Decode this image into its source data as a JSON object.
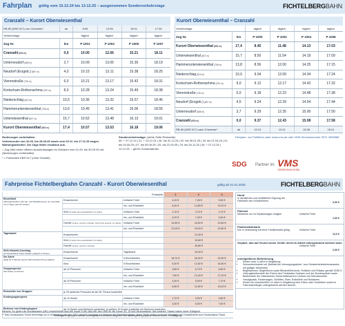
{
  "header": {
    "title": "Fahrplan",
    "validity": "gültig vom 15.12.24 bis 13.12.25 – ausgenommen Sonderverkehrstage",
    "logo_bold": "FICHTELBERG",
    "logo_light": "BAHN"
  },
  "timetables": [
    {
      "title": "Cranzahl – Kurort Oberwiesenthal",
      "arrival": {
        "label": "RB 80 (KBS 517) von Chemnitz*",
        "mark": "an",
        "times": [
          "8:55",
          "12:55",
          "15:01",
          "17:05"
        ]
      },
      "days_label": "Verkehrstage",
      "days": [
        "täglich",
        "täglich",
        "täglich",
        "täglich"
      ],
      "train_label": "Zug Nr.",
      "km_label": "km",
      "trains": [
        "P 1001",
        "P 1003",
        "P 1005",
        "P 1007"
      ],
      "stops": [
        {
          "name": "Cranzahl",
          "alt": "(654 m)",
          "km": "0,0",
          "times": [
            "10.00",
            "12.56",
            "15.21",
            "18.11"
          ]
        },
        {
          "name": "Unterneudorf",
          "alt": "(685 m)",
          "km": "2,7",
          "times": [
            "10.09",
            "13.05",
            "15.30",
            "18.19"
          ]
        },
        {
          "name": "Neudorf (Erzgeb.)",
          "alt": "(687 m)",
          "km": "4,0",
          "times": [
            "10.15",
            "13.11",
            "15.38",
            "18.25"
          ]
        },
        {
          "name": "Vierenstraße",
          "alt": "(726 m)",
          "km": "6,0",
          "times": [
            "10.21",
            "13.17",
            "15.42",
            "18.31"
          ]
        },
        {
          "name": "Kretscham-Rothensehma",
          "alt": "(792 m)",
          "km": "8,0",
          "times": [
            "10.28",
            "13.24",
            "15.49",
            "18.38"
          ]
        },
        {
          "name": "Niederschlag",
          "alt": "(813 m)",
          "km": "10,5",
          "times": [
            "10.36",
            "13.32",
            "15.57",
            "18.46"
          ]
        },
        {
          "name": "Hammerunterwiesenthal",
          "alt": "(796 m)",
          "km": "13,6",
          "times": [
            "10.45",
            "13.41",
            "16.06",
            "18.55"
          ]
        },
        {
          "name": "Unterwiesenthal",
          "alt": "(847 m)",
          "km": "15,7",
          "times": [
            "10.52",
            "13.48",
            "16.13",
            "19.01"
          ]
        },
        {
          "name": "Kurort Oberwiesenthal",
          "alt": "(893 m)",
          "km": "17,4",
          "times": [
            "10.57",
            "13.53",
            "16.18",
            "19.06"
          ]
        }
      ]
    },
    {
      "title": "Kurort Oberwiesenthal – Cranzahl",
      "days_label": "Verkehrstage",
      "days": [
        "täglich",
        "täglich",
        "täglich",
        "täglich"
      ],
      "train_label": "Zug Nr.",
      "km_label": "km",
      "trains": [
        "P 1000",
        "P 1002",
        "P 1004",
        "P 1006"
      ],
      "stops": [
        {
          "name": "Kurort Oberwiesenthal",
          "alt": "(893 m)",
          "km": "17,4",
          "times": [
            "8.45",
            "11.48",
            "14.13",
            "17.03"
          ]
        },
        {
          "name": "Unterwiesenthal",
          "alt": "(847 m)",
          "km": "15,7",
          "times": [
            "8.50",
            "11.54",
            "14.19",
            "17.09"
          ]
        },
        {
          "name": "Hammerunterwiesenthal",
          "alt": "(796 m)",
          "km": "13,8",
          "times": [
            "8.56",
            "12.00",
            "14.25",
            "17.15"
          ]
        },
        {
          "name": "Niederschlag",
          "alt": "(813 m)",
          "km": "10,9",
          "times": [
            "9.04",
            "12.09",
            "14.34",
            "17.24"
          ]
        },
        {
          "name": "Kretscham-Rothensehma",
          "alt": "(792 m)",
          "km": "9,0",
          "times": [
            "9.12",
            "12.17",
            "14.42",
            "17.32"
          ]
        },
        {
          "name": "Vierenstraße",
          "alt": "(726 m)",
          "km": "6,0",
          "times": [
            "9.18",
            "12.23",
            "14.48",
            "17.38"
          ]
        },
        {
          "name": "Neudorf (Erzgeb.)",
          "alt": "(687 m)",
          "km": "4,5",
          "times": [
            "9.24",
            "12.29",
            "14.54",
            "17.44"
          ]
        },
        {
          "name": "Unterneudorf",
          "alt": "(685 m)",
          "km": "3,7",
          "times": [
            "9.29",
            "12.35",
            "15.00",
            "17.50"
          ]
        },
        {
          "name": "Cranzahl",
          "alt": "(654 m)",
          "km": "0,0",
          "times": [
            "9.37",
            "12.43",
            "15.08",
            "17.58"
          ]
        }
      ],
      "departure": {
        "label": "RB 80 (KBS 517) nach Chemnitz*",
        "mark": "ab",
        "times": [
          "10.01",
          "13.01",
          "15.38",
          "18.01"
        ]
      }
    }
  ],
  "notes": {
    "changes": "Änderungen vorbehalten.",
    "closure": "Verkehrsruhe von 10.03. bis 28.03.25 sowie vom 03.11. bis 27.11.25 wegen Wartungsarbeiten. Die Züge fallen ersatzlos aus.",
    "open_car": "= Zug führt einen offenen Aussichtswagen im Zeitraum vom 01.05. bis 30.09.25 mit. (Änderungen vorbehalten)",
    "kbs": "* = Fahrzeiten KBS 517 (ohne Gewähr)"
  },
  "special": {
    "label": "Sonderverkehrstage:",
    "ref": "(siehe Seite Rückseite)",
    "dates": [
      "06. + 07.12.24",
      "21. + 22.12.24",
      "26. bis 31.12.24",
      "02. bis 05.01.25",
      "18. bis 21.04.25",
      "01. bis 04.05.25",
      "07. bis 09.06.25",
      "20. bis 21.09.25",
      "29. bis 30.11.25",
      "06. + 07.12.25",
      "12.12.25"
    ],
    "suffix": "– gilt für Sonderfahrten"
  },
  "info": "Fahrplan- und Tarifinfos unter www.vms.de oder VMS-Servicenummer 0371 4000888",
  "partner": {
    "sdg": "SDG",
    "text": "Partner im",
    "vms": "VMS",
    "vms_sub": "GEMEINSAM MOBIL"
  },
  "fares": {
    "title": "Fahrpreise Fichtelbergbahn Cranzahl - Kurort Oberwiesenthal",
    "validity": "gültig ab 01.01.2025",
    "level_label": "Preisstufe",
    "levels": [
      "1",
      "2",
      "3"
    ],
    "groups": [
      {
        "name": "Einzelfahrt",
        "note": "Fahrradmitnahme: Die Hin- und Rückfahrt kann nur innerhalb von 3 Tagen genutzt werden.",
        "rows": [
          {
            "who": "Erwachsener",
            "kind": "einfache Fahrt",
            "prices": [
              "4,20 €",
              "7,40 €",
              "9,60 €"
            ]
          },
          {
            "kind": "hin- und Rückfahrt",
            "prices": [
              "8,40 €",
              "14,80 €",
              "19,20 €"
            ]
          },
          {
            "who": "Kind",
            "who_note": "(6 Jahre bis einschließlich 14 Jahre)",
            "kind": "einfache Fahrt",
            "prices": [
              "2,10 €",
              "3,70 €",
              "4,70 €"
            ]
          },
          {
            "kind": "hin- und Rückfahrt",
            "prices": [
              "4,20 €",
              "7,40 €",
              "9,40 €"
            ]
          },
          {
            "who": "Familie",
            "who_note": "(2 Erw. und bis 4 Kinder, Kind 6 bis einschl. 14 Jahre)",
            "kind": "einfache Fahrt",
            "prices": [
              "10,50 €",
              "18,50 €",
              "23,60 €"
            ]
          },
          {
            "kind": "hin- und Rückfahrt",
            "prices": [
              "21,00 €",
              "33,00 €",
              "42,80 €"
            ]
          }
        ]
      },
      {
        "name": "Tageskarte",
        "rows": [
          {
            "who": "Erwachsener",
            "prices": [
              "21,40 €"
            ]
          },
          {
            "who": "Kind",
            "who_note": "(6 Jahre bis einschließlich 14 Jahre)",
            "prices": [
              "10,60 €"
            ]
          },
          {
            "who": "Familie",
            "who_note": "(2 Erw. und bis 4 Kinder)",
            "prices": [
              "49,80 €"
            ]
          }
        ]
      },
      {
        "name": "SDG-Historik-Zuschlag",
        "note": "für Deutschland-Ticket Inhaber, gültig für 1 Person",
        "rows": [
          {
            "who": "Erwachsener",
            "kind": "Tageskarte",
            "prices": [
              "10,00 €"
            ]
          }
        ]
      },
      {
        "name": "5er-Karte",
        "note": "gültig für 5 Fahrten (keine Fahrtunterbrechung möglich)",
        "rows": [
          {
            "who": "Erwachsener",
            "kind": "5 Einzelfahrten",
            "prices": [
              "18,70 €",
              "25,00 €",
              "33,90 €"
            ]
          },
          {
            "who": "Kind",
            "kind": "5 Einzelfahrten",
            "prices": [
              "9,30 €",
              "12,60 €",
              "16,90 €"
            ]
          }
        ]
      },
      {
        "name": "Gruppenpreise",
        "note": "Alle Preise pro Person",
        "rows": [
          {
            "who": "ab 10 Personen",
            "kind": "einfache Fahrt",
            "prices": [
              "3,80 €",
              "6,70 €",
              "8,60 €"
            ]
          },
          {
            "kind": "hin- und Rückfahrt",
            "prices": [
              "7,60 €",
              "13,40 €",
              "17,20 €"
            ]
          },
          {
            "who": "ab 25 Personen",
            "kind": "einfache Fahrt",
            "prices": [
              "3,40 €",
              "5,90 €",
              "7,70 €"
            ]
          },
          {
            "kind": "hin- und Rückfahrt",
            "prices": [
              "6,80 €",
              "11,80 €",
              "15,20 €"
            ]
          }
        ]
      },
      {
        "name": "Reiseleiter von Gruppen",
        "text": "je 25 zahlende Personen ist die 26. Person kostenfrei"
      },
      {
        "name": "Kindergruppenpreis",
        "rows": [
          {
            "who": "ab 10 Kinder",
            "kind": "einfache Fahrt",
            "prices": [
              "1,70 €",
              "3,00 €",
              "3,80 €"
            ]
          },
          {
            "kind": "hin- und Rückfahrt",
            "prices": [
              "3,40 €",
              "6,00 €",
              "7,60 €"
            ]
          }
        ]
      },
      {
        "name": "Betreuer von Kindergruppen",
        "text": "ab 10 Kinder zwei Betreuer kostenfrei, je weitere 10 Kinder zusätzlich ein Betreuer kostenfrei"
      }
    ],
    "footnote": "Kindergartengruppen werden unentgeltlich befördert, Begleiter von Kindergartengruppen erhalten keine Ermäßigung.",
    "side": [
      {
        "title": "Hund",
        "text": "in dienstlicher und zertifizierter Eignung der Fahrkarte des Hundeführers",
        "price": "3,00 €"
      },
      {
        "title": "Fahrrad",
        "text": "Mitnahme nur im Gepäckwagen möglich",
        "kind": "einfache Fahrt",
        "price": "1,60 €"
      },
      {
        "title": "Familienfahrkarte",
        "text": "Nur in Verbindung mit einer Familienkarte gültig",
        "kind": "einfache Fahrt",
        "price": "12,0 €"
      },
      {
        "title": "Gepäck, das auf Grund seiner Größe nicht im Abteil untergebracht werden kann",
        "kind": "einfache Fahrt",
        "price": "2,00 €"
      }
    ],
    "free": {
      "title": "unentgeltliche Beförderung",
      "items": [
        "Kinder unter 6 Jahre in Begleitung",
        "Schwerbehinderte mit „Beiblatt der Versorgungsämter“ zum Schwerbehindertenausweis mit gültiger Wertmarke",
        "Begleitperson, Begleithund sowie Blindenführhunde, Rollstuhl und Rollator gemäß SGB IX",
        "Vollzugsbedienstete der Polizei des Freistaates Sachsen und der Bundespolizei sowie Bedienstete der Sächsischen Sicherheitswacht in Uniform mit Dienstausweis",
        "Handgepäck, Kinderwagen, Schlitten, Skier, Rollstühle und Rollatoren",
        "Kinder bis einschließlich 14 Jahre in Begleitung ihrer Eltern oder Großeltern sowie im Fahrradanhänger untergebracht werden können"
      ]
    }
  },
  "footer": [
    "Hinweis: Es gelten die Monatskarten (MK) einschließlich Abo-MK sowie 9-Uhr-Abo-MK des VMS für die Zonen 32, 33 und Verbundraum. Alle anderen Tickets haben keine Gültigkeit.",
    "** Das Deutschland-Ticket berechtigt nur in Verbindung mit dem SDG-Historik-Zuschlag zur Nutzung der Fichtelbergbahn. Neue Tarife gelten, auch bei Verträgen mit Zusatztickets zum Deutschland-Ticket."
  ]
}
